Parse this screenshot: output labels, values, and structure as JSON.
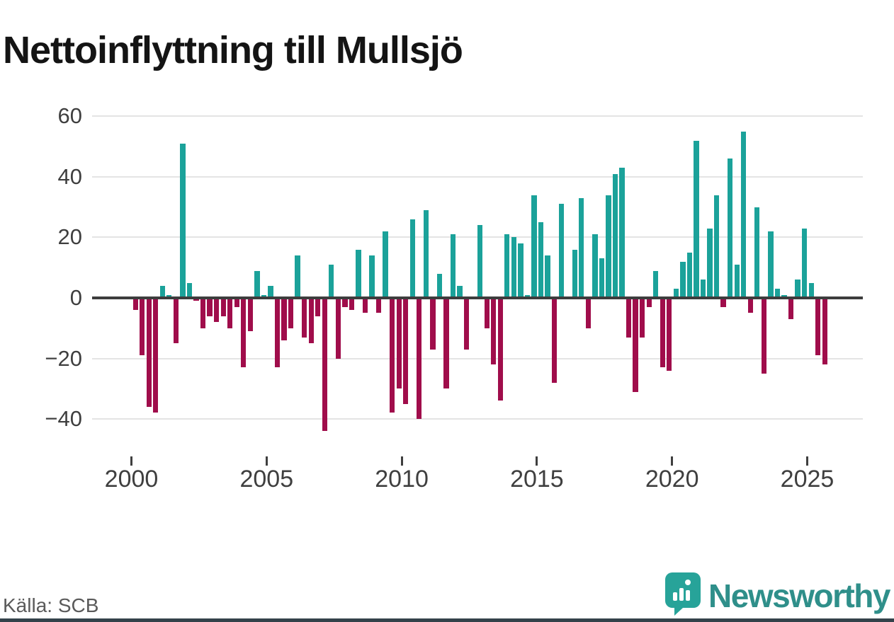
{
  "title": "Nettoinflyttning till Mullsjö",
  "source_label": "Källa: SCB",
  "brand": {
    "name": "Newsworthy",
    "icon": "bar-chart-pin-icon"
  },
  "colors": {
    "positive_bar": "#1BA29A",
    "negative_bar": "#A00D4B",
    "axis_line": "#3D3D3D",
    "gridline": "#E4E4E4",
    "brand_teal": "#2F8F8A",
    "footer_strip": "#33424A"
  },
  "chart_data": {
    "type": "bar",
    "title": "Nettoinflyttning till Mullsjö",
    "x_frequency": "quarterly",
    "x_start": "2000 Q1",
    "x_end": "2025 Q3",
    "x_tick_labels": [
      "2000",
      "2005",
      "2010",
      "2015",
      "2020",
      "2025"
    ],
    "y_ticks": [
      60,
      40,
      20,
      0,
      -20,
      -40
    ],
    "y_tick_labels": [
      "60",
      "40",
      "20",
      "0",
      "−20",
      "−40"
    ],
    "ylim": [
      -47,
      63
    ],
    "grid": "horizontal",
    "legend": "none",
    "values": [
      -4,
      -19,
      -36,
      -38,
      4,
      1,
      -15,
      51,
      5,
      -1,
      -10,
      -6,
      -8,
      -6,
      -10,
      -3,
      -23,
      -11,
      9,
      1,
      4,
      -23,
      -14,
      -10,
      14,
      -13,
      -15,
      -6,
      -44,
      11,
      -20,
      -3,
      -4,
      16,
      -5,
      14,
      -5,
      22,
      -38,
      -30,
      -35,
      26,
      -40,
      29,
      -17,
      8,
      -30,
      21,
      4,
      -17,
      0,
      24,
      -10,
      -22,
      -34,
      21,
      20,
      18,
      1,
      34,
      25,
      14,
      -28,
      31,
      0,
      16,
      33,
      -10,
      21,
      13,
      34,
      41,
      43,
      -13,
      -31,
      -13,
      -3,
      9,
      -23,
      -24,
      3,
      12,
      15,
      52,
      6,
      23,
      34,
      -3,
      46,
      11,
      55,
      -5,
      30,
      -25,
      22,
      3,
      1,
      -7,
      6,
      23,
      5,
      -19,
      -22
    ]
  }
}
